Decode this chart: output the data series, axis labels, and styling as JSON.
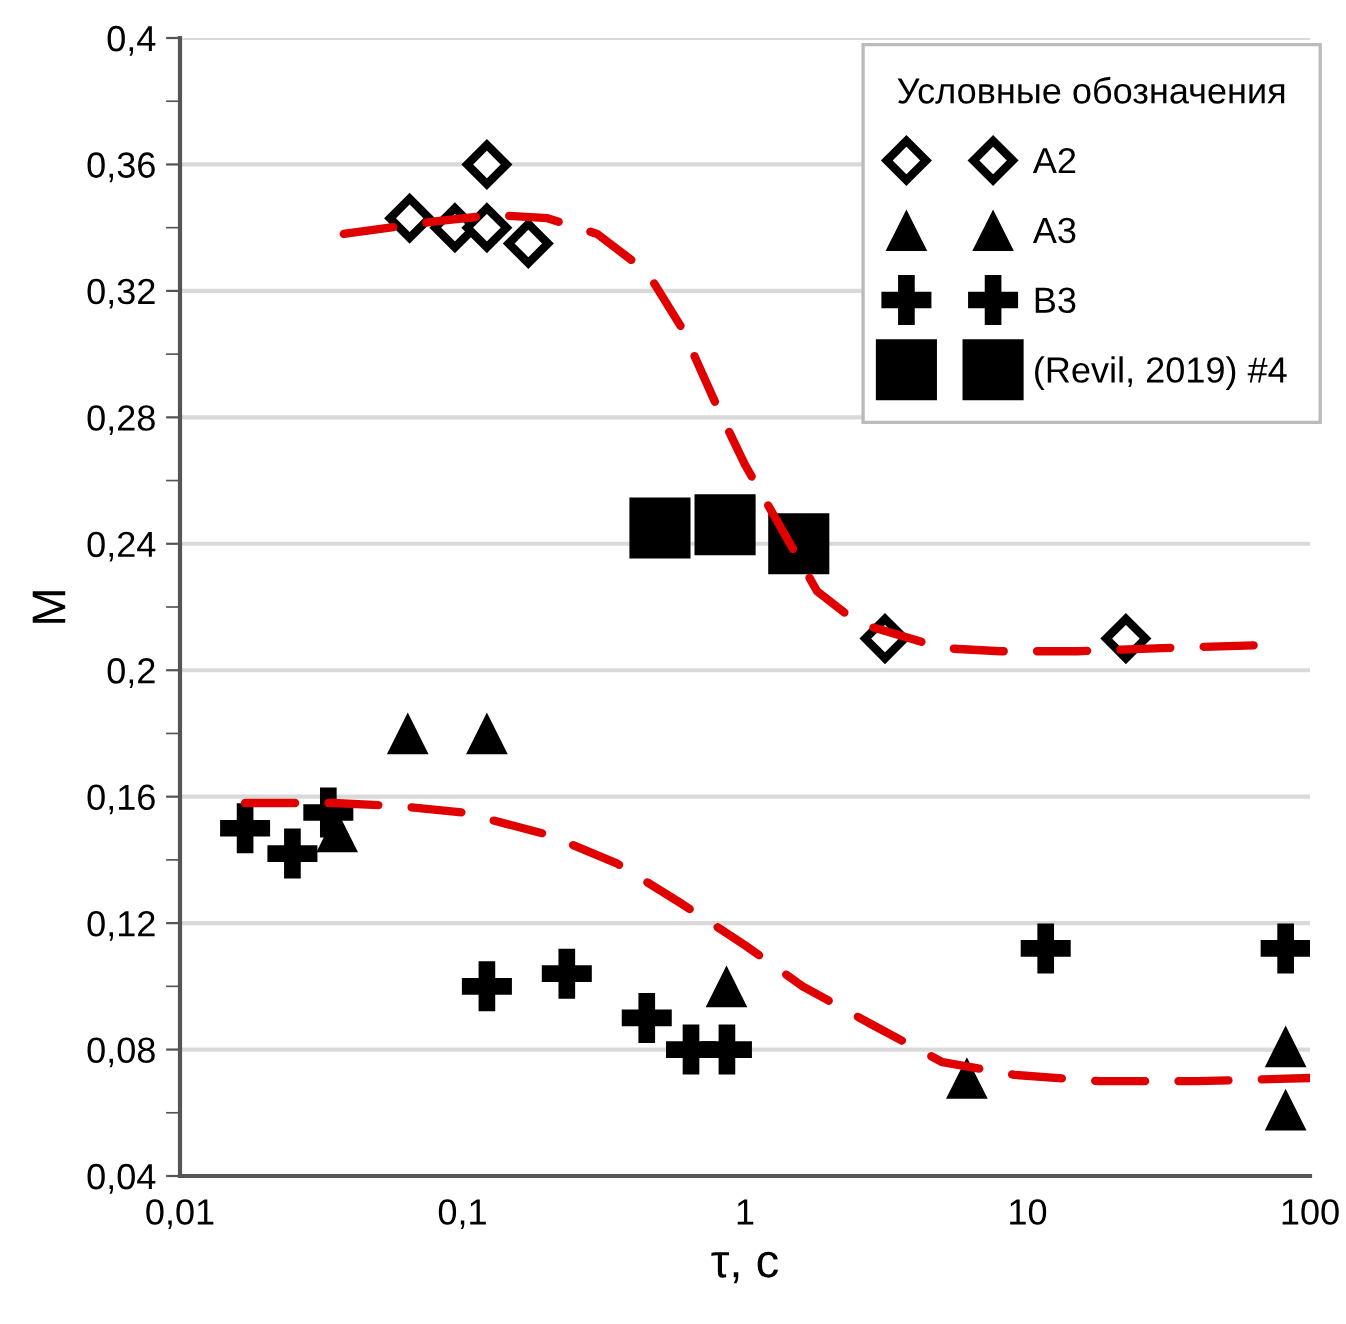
{
  "chart_data": {
    "type": "scatter",
    "xlabel": "τ, c",
    "ylabel": "M",
    "legend_title": "Условные обозначения",
    "log": "x",
    "grid": "y",
    "legend": "top right",
    "xlim": [
      0.01,
      100
    ],
    "xticks": [
      {
        "value": 0.01,
        "label": "0,01"
      },
      {
        "value": 0.1,
        "label": "0,1"
      },
      {
        "value": 1,
        "label": "1"
      },
      {
        "value": 10,
        "label": "10"
      },
      {
        "value": 100,
        "label": "100"
      }
    ],
    "ylim": [
      0.04,
      0.4
    ],
    "yticks": [
      {
        "value": 0.04,
        "label": "0,04"
      },
      {
        "value": 0.08,
        "label": "0,08"
      },
      {
        "value": 0.12,
        "label": "0,12"
      },
      {
        "value": 0.16,
        "label": "0,16"
      },
      {
        "value": 0.2,
        "label": "0,2"
      },
      {
        "value": 0.24,
        "label": "0,24"
      },
      {
        "value": 0.28,
        "label": "0,28"
      },
      {
        "value": 0.32,
        "label": "0,32"
      },
      {
        "value": 0.36,
        "label": "0,36"
      },
      {
        "value": 0.4,
        "label": "0,4"
      }
    ],
    "series": [
      {
        "type": "line",
        "color": "#e00000",
        "line_style": "dashed",
        "x": [
          0.038,
          0.08,
          0.13,
          0.2,
          0.3,
          0.45,
          0.6,
          0.8,
          1.0,
          1.8,
          2.5,
          5,
          8,
          15,
          30,
          70
        ],
        "values": [
          0.338,
          0.342,
          0.344,
          0.343,
          0.338,
          0.326,
          0.308,
          0.283,
          0.265,
          0.225,
          0.215,
          0.207,
          0.206,
          0.206,
          0.207,
          0.208
        ]
      },
      {
        "type": "line",
        "color": "#e00000",
        "line_style": "dashed",
        "x": [
          0.017,
          0.035,
          0.06,
          0.1,
          0.2,
          0.35,
          0.6,
          1.0,
          1.6,
          2.8,
          5,
          9,
          18,
          40,
          100
        ],
        "values": [
          0.158,
          0.158,
          0.157,
          0.155,
          0.148,
          0.139,
          0.126,
          0.113,
          0.1,
          0.088,
          0.076,
          0.072,
          0.07,
          0.07,
          0.071
        ]
      },
      {
        "name": "A2",
        "color": "#000000",
        "marker": "diamond",
        "x": [
          0.065,
          0.094,
          0.122,
          0.122,
          0.171,
          3.13,
          22.3
        ],
        "values": [
          0.343,
          0.34,
          0.36,
          0.34,
          0.335,
          0.21,
          0.21
        ]
      },
      {
        "name": "A3",
        "color": "#000000",
        "marker": "triangle",
        "x": [
          0.064,
          0.122,
          0.036,
          0.86,
          6.1,
          82,
          82
        ],
        "values": [
          0.18,
          0.18,
          0.149,
          0.1,
          0.071,
          0.081,
          0.061
        ]
      },
      {
        "name": "B3",
        "color": "#000000",
        "marker": "cross",
        "x": [
          0.017,
          0.025,
          0.0335,
          0.122,
          0.234,
          0.449,
          0.644,
          0.863,
          11.6,
          82
        ],
        "values": [
          0.15,
          0.142,
          0.155,
          0.1,
          0.104,
          0.09,
          0.08,
          0.08,
          0.112,
          0.112
        ]
      },
      {
        "name": "(Revil, 2019) #4",
        "color": "#000000",
        "marker": "square",
        "x": [
          0.5,
          0.85,
          1.55
        ],
        "values": [
          0.245,
          0.246,
          0.24
        ]
      }
    ]
  }
}
